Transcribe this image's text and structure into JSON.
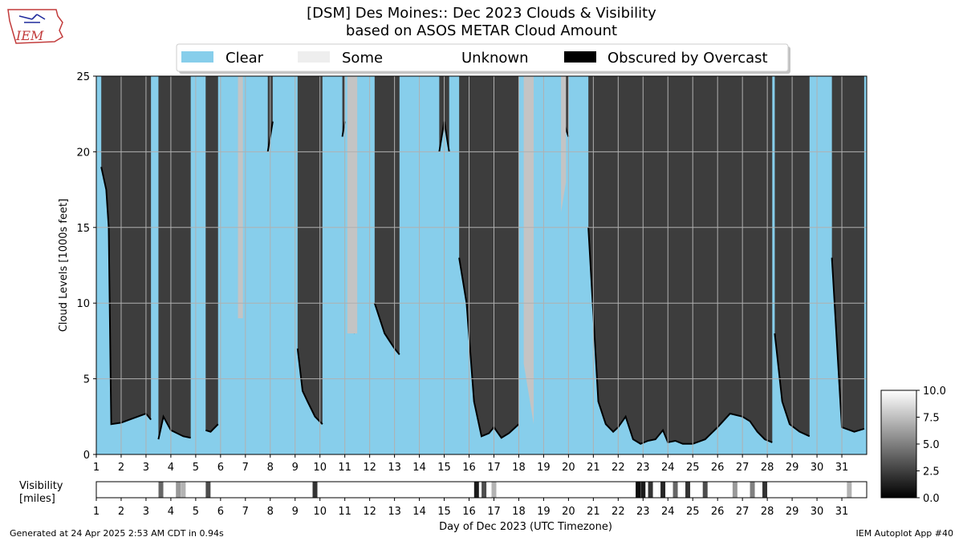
{
  "logo": {
    "text": "IEM",
    "icon": "iowa-state-outline-icon"
  },
  "title": {
    "line1": "[DSM] Des Moines:: Dec 2023 Clouds & Visibility",
    "line2": "based on ASOS METAR Cloud Amount"
  },
  "legend": [
    {
      "label": "Clear",
      "color": "#87CEEB"
    },
    {
      "label": "Some",
      "color": "#EEEEEE"
    },
    {
      "label": "Unknown",
      "color": "#FFFFFF"
    },
    {
      "label": "Obscured by Overcast",
      "color": "#000000"
    }
  ],
  "colors": {
    "clear": "#87CEEB",
    "overcast": "#3D3D3D",
    "some": "#C4C4C4",
    "obscured": "#000000",
    "grid": "#B0B0B0"
  },
  "visibility_panel": {
    "label_line1": "Visibility",
    "label_line2": "[miles]"
  },
  "colorbar": {
    "ticks": [
      "10.0",
      "7.5",
      "5.0",
      "2.5",
      "0.0"
    ],
    "range": [
      0,
      10
    ]
  },
  "footer": {
    "generated": "Generated at 24 Apr 2025 2:53 AM CDT in 0.94s",
    "app": "IEM Autoplot App #40"
  },
  "chart_data": [
    {
      "type": "area",
      "title": "[DSM] Des Moines:: Dec 2023 Clouds & Visibility",
      "subtitle": "based on ASOS METAR Cloud Amount",
      "ylabel": "Cloud Levels [1000s feet]",
      "xlabel": "Day of Dec 2023 (UTC Timezone)",
      "xlim": [
        1,
        32
      ],
      "ylim": [
        0,
        25
      ],
      "grid": true,
      "legend_placement": "top",
      "x_ticks": [
        "1",
        "2",
        "3",
        "4",
        "5",
        "6",
        "7",
        "8",
        "9",
        "10",
        "11",
        "12",
        "13",
        "14",
        "15",
        "16",
        "17",
        "18",
        "19",
        "20",
        "21",
        "22",
        "23",
        "24",
        "25",
        "26",
        "27",
        "28",
        "29",
        "30",
        "31"
      ],
      "y_ticks": [
        "0",
        "5",
        "10",
        "15",
        "20",
        "25"
      ],
      "series": [
        {
          "name": "Obscured by Overcast",
          "category": "overcast",
          "segments": [
            {
              "x": [
                1.2,
                1.4,
                1.5,
                1.6,
                2.0,
                2.5,
                3.0,
                3.2
              ],
              "base": [
                19,
                17.5,
                15,
                2,
                2.1,
                2.4,
                2.7,
                2.3
              ]
            },
            {
              "x": [
                3.5,
                3.7,
                4.0,
                4.5,
                4.8
              ],
              "base": [
                1.0,
                2.5,
                1.6,
                1.2,
                1.1
              ]
            },
            {
              "x": [
                5.4,
                5.6,
                5.9
              ],
              "base": [
                1.6,
                1.5,
                2.0
              ]
            },
            {
              "x": [
                7.9,
                8.1
              ],
              "base": [
                20,
                22
              ]
            },
            {
              "x": [
                9.1,
                9.3,
                9.5,
                9.8,
                10.1
              ],
              "base": [
                7,
                4.2,
                3.5,
                2.5,
                2.0
              ]
            },
            {
              "x": [
                10.9,
                11.0
              ],
              "base": [
                21,
                22
              ]
            },
            {
              "x": [
                11.2,
                11.4
              ],
              "base": [
                9,
                8
              ]
            },
            {
              "x": [
                12.2,
                12.4,
                12.6,
                12.8,
                13.0,
                13.2
              ],
              "base": [
                10,
                9.0,
                8.0,
                7.5,
                7.0,
                6.6
              ]
            },
            {
              "x": [
                14.8,
                15.0,
                15.2
              ],
              "base": [
                20,
                22,
                20
              ]
            },
            {
              "x": [
                15.6,
                15.9,
                16.2,
                16.5,
                16.8,
                17.0,
                17.3,
                17.6,
                18.0
              ],
              "base": [
                13,
                10,
                3.5,
                1.2,
                1.4,
                1.8,
                1.1,
                1.4,
                2.0
              ]
            },
            {
              "x": [
                19.8,
                20.0
              ],
              "base": [
                22,
                21
              ]
            },
            {
              "x": [
                20.8,
                21.2,
                21.5,
                21.8,
                22.0,
                22.3,
                22.6,
                22.9,
                23.2,
                23.5,
                23.8,
                24.0,
                24.3,
                24.6,
                25.0,
                25.5,
                26.0,
                26.5,
                27.0,
                27.3,
                27.6,
                27.9,
                28.2
              ],
              "base": [
                15,
                3.5,
                2.0,
                1.5,
                1.8,
                2.5,
                1.0,
                0.7,
                0.9,
                1.0,
                1.6,
                0.8,
                0.9,
                0.7,
                0.7,
                1.0,
                1.8,
                2.7,
                2.5,
                2.2,
                1.5,
                1.0,
                0.8
              ]
            },
            {
              "x": [
                28.3,
                28.6,
                28.9,
                29.3,
                29.7
              ],
              "base": [
                8,
                3.5,
                2.0,
                1.5,
                1.2
              ]
            },
            {
              "x": [
                30.6,
                31.0,
                31.5,
                31.9
              ],
              "base": [
                13,
                1.8,
                1.5,
                1.7
              ]
            }
          ]
        },
        {
          "name": "Some",
          "category": "some",
          "segments": [
            {
              "x": [
                6.7,
                6.9
              ],
              "base": [
                9,
                9
              ]
            },
            {
              "x": [
                11.1,
                11.5
              ],
              "base": [
                8,
                8
              ]
            },
            {
              "x": [
                18.2,
                18.6
              ],
              "base": [
                6,
                2
              ]
            },
            {
              "x": [
                19.7,
                19.9
              ],
              "base": [
                16,
                18
              ]
            }
          ]
        },
        {
          "name": "Clear",
          "category": "clear",
          "values_note": ""
        }
      ]
    },
    {
      "type": "heatmap",
      "ylabel": "Visibility [miles]",
      "x_ticks": [
        "1",
        "2",
        "3",
        "4",
        "5",
        "6",
        "7",
        "8",
        "9",
        "10",
        "11",
        "12",
        "13",
        "14",
        "15",
        "16",
        "17",
        "18",
        "19",
        "20",
        "21",
        "22",
        "23",
        "24",
        "25",
        "26",
        "27",
        "28",
        "29",
        "30",
        "31"
      ],
      "zlim": [
        0,
        10
      ],
      "low_visibility_days": [
        {
          "x": 3.6,
          "v": 4
        },
        {
          "x": 4.3,
          "v": 6
        },
        {
          "x": 4.5,
          "v": 7
        },
        {
          "x": 5.5,
          "v": 3
        },
        {
          "x": 9.8,
          "v": 2
        },
        {
          "x": 16.3,
          "v": 1
        },
        {
          "x": 16.6,
          "v": 3
        },
        {
          "x": 17.0,
          "v": 7
        },
        {
          "x": 22.8,
          "v": 0.5
        },
        {
          "x": 23.0,
          "v": 1
        },
        {
          "x": 23.3,
          "v": 2
        },
        {
          "x": 23.8,
          "v": 1.5
        },
        {
          "x": 24.3,
          "v": 4
        },
        {
          "x": 24.8,
          "v": 2
        },
        {
          "x": 25.5,
          "v": 3
        },
        {
          "x": 26.7,
          "v": 6
        },
        {
          "x": 27.4,
          "v": 5
        },
        {
          "x": 27.9,
          "v": 2
        },
        {
          "x": 31.3,
          "v": 7
        }
      ]
    }
  ]
}
